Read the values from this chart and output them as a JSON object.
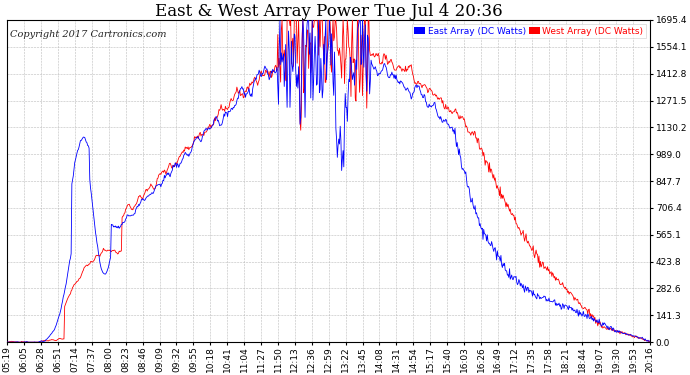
{
  "title": "East & West Array Power Tue Jul 4 20:36",
  "copyright": "Copyright 2017 Cartronics.com",
  "legend_east": "East Array (DC Watts)",
  "legend_west": "West Array (DC Watts)",
  "east_color": "#0000ff",
  "west_color": "#ff0000",
  "background_color": "#ffffff",
  "plot_bg_color": "#ffffff",
  "grid_color": "#bbbbbb",
  "yticks": [
    0.0,
    141.3,
    282.6,
    423.8,
    565.1,
    706.4,
    847.7,
    989.0,
    1130.2,
    1271.5,
    1412.8,
    1554.1,
    1695.4
  ],
  "ylim": [
    0,
    1695.4
  ],
  "xtick_labels": [
    "05:19",
    "06:05",
    "06:28",
    "06:51",
    "07:14",
    "07:37",
    "08:00",
    "08:23",
    "08:46",
    "09:09",
    "09:32",
    "09:55",
    "10:18",
    "10:41",
    "11:04",
    "11:27",
    "11:50",
    "12:13",
    "12:36",
    "12:59",
    "13:22",
    "13:45",
    "14:08",
    "14:31",
    "14:54",
    "15:17",
    "15:40",
    "16:03",
    "16:26",
    "16:49",
    "17:12",
    "17:35",
    "17:58",
    "18:21",
    "18:44",
    "19:07",
    "19:30",
    "19:53",
    "20:16"
  ],
  "title_fontsize": 12,
  "tick_fontsize": 6.5,
  "copyright_fontsize": 7
}
